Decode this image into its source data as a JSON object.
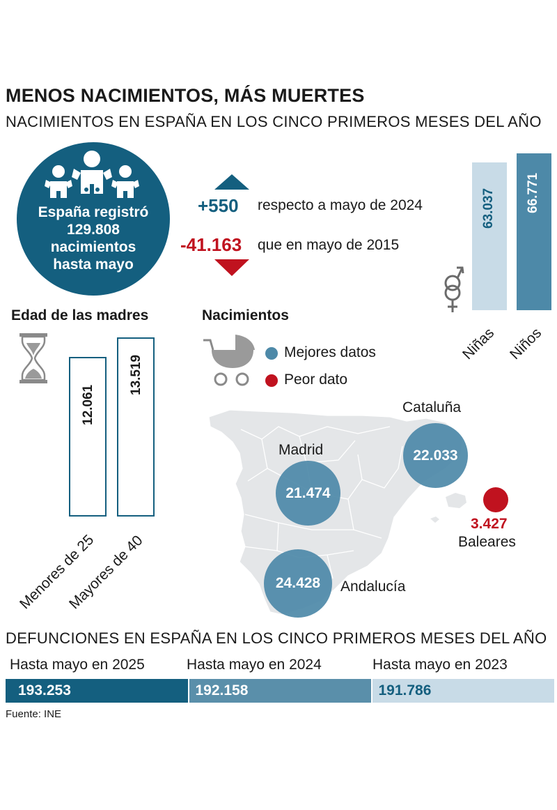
{
  "title": "MENOS NACIMIENTOS, MÁS MUERTES",
  "subtitle": "NACIMIENTOS EN ESPAÑA EN LOS CINCO PRIMEROS MESES DEL AÑO",
  "hero": {
    "lines": [
      "España registró",
      "129.808",
      "nacimientos",
      "hasta mayo"
    ],
    "icon": "babies-icon"
  },
  "comparison": [
    {
      "value": "+550",
      "text": "respecto a mayo de 2024",
      "direction": "up",
      "color": "#145f7f"
    },
    {
      "value": "-41.163",
      "text": "que en mayo de 2015",
      "direction": "down",
      "color": "#c0121f"
    }
  ],
  "gender": {
    "icon": "gender-symbol-icon",
    "girls": {
      "label": "Niñas",
      "value": "63.037"
    },
    "boys": {
      "label": "Niños",
      "value": "66.771"
    }
  },
  "mothers_age": {
    "title": "Edad de las madres",
    "icon": "hourglass-icon",
    "under25": {
      "label": "Menores de 25",
      "value": "12.061"
    },
    "over40": {
      "label": "Mayores de 40",
      "value": "13.519"
    }
  },
  "births_map": {
    "title": "Nacimientos",
    "icon": "stroller-icon",
    "legend": [
      {
        "label": "Mejores datos",
        "color": "#4d89a8"
      },
      {
        "label": "Peor dato",
        "color": "#c0121f"
      }
    ],
    "regions": {
      "cataluna": {
        "name": "Cataluña",
        "value": "22.033"
      },
      "madrid": {
        "name": "Madrid",
        "value": "21.474"
      },
      "andalucia": {
        "name": "Andalucía",
        "value": "24.428"
      },
      "baleares": {
        "name": "Baleares",
        "value": "3.427"
      }
    }
  },
  "deaths": {
    "title": "DEFUNCIONES EN ESPAÑA EN LOS CINCO PRIMEROS MESES DEL AÑO",
    "years": [
      {
        "label": "Hasta mayo en 2025",
        "value": "193.253",
        "color": "#145f7f"
      },
      {
        "label": "Hasta mayo en 2024",
        "value": "192.158",
        "color": "#5a8faa"
      },
      {
        "label": "Hasta mayo en 2023",
        "value": "191.786",
        "color": "#c8dbe7"
      }
    ]
  },
  "source": "Fuente: INE",
  "chart_data": [
    {
      "type": "bar",
      "categories": [
        "Niñas",
        "Niños"
      ],
      "values": [
        63037,
        66771
      ]
    },
    {
      "type": "bar",
      "title": "Edad de las madres",
      "categories": [
        "Menores de 25",
        "Mayores de 40"
      ],
      "values": [
        12061,
        13519
      ]
    },
    {
      "type": "bar",
      "title": "Nacimientos",
      "categories": [
        "Cataluña",
        "Madrid",
        "Andalucía",
        "Baleares"
      ],
      "values": [
        22033,
        21474,
        24428,
        3427
      ]
    },
    {
      "type": "bar",
      "title": "DEFUNCIONES EN ESPAÑA EN LOS CINCO PRIMEROS MESES DEL AÑO",
      "categories": [
        "Hasta mayo en 2025",
        "Hasta mayo en 2024",
        "Hasta mayo en 2023"
      ],
      "values": [
        193253,
        192158,
        191786
      ]
    }
  ]
}
